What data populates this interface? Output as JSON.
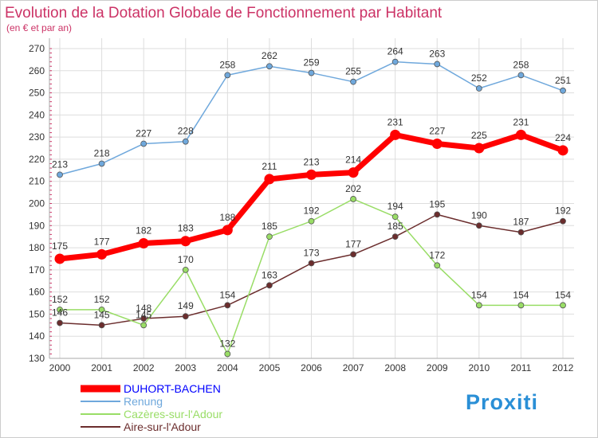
{
  "chart_data": {
    "type": "line",
    "title": "Evolution de la Dotation Globale de Fonctionnement par Habitant",
    "subtitle": "(en € et par an)",
    "x": [
      "2000",
      "2001",
      "2002",
      "2003",
      "2004",
      "2005",
      "2006",
      "2007",
      "2008",
      "2009",
      "2010",
      "2011",
      "2012"
    ],
    "ylim": [
      130,
      270
    ],
    "yticks": [
      130,
      140,
      150,
      160,
      170,
      180,
      190,
      200,
      210,
      220,
      230,
      240,
      250,
      260,
      270
    ],
    "grid": true,
    "legend_position": "bottom-left",
    "series": [
      {
        "name": "DUHORT-BACHEN",
        "color": "#ff0000",
        "values": [
          175,
          177,
          182,
          183,
          188,
          211,
          213,
          214,
          231,
          227,
          225,
          231,
          224
        ]
      },
      {
        "name": "Renung",
        "color": "#6fa8dc",
        "values": [
          213,
          218,
          227,
          228,
          258,
          262,
          259,
          255,
          264,
          263,
          252,
          258,
          251
        ]
      },
      {
        "name": "Cazères-sur-l'Adour",
        "color": "#99dd66",
        "values": [
          152,
          152,
          145,
          170,
          132,
          185,
          192,
          202,
          194,
          172,
          154,
          154,
          154
        ]
      },
      {
        "name": "Aire-sur-l'Adour",
        "color": "#6b2d2d",
        "values": [
          146,
          145,
          148,
          149,
          154,
          163,
          173,
          177,
          185,
          195,
          190,
          187,
          192
        ]
      }
    ]
  },
  "colors": {
    "title": "#cc3366",
    "grid": "#dddddd",
    "axis": "#aaaaaa"
  },
  "logo": {
    "text": "Proxiti"
  }
}
